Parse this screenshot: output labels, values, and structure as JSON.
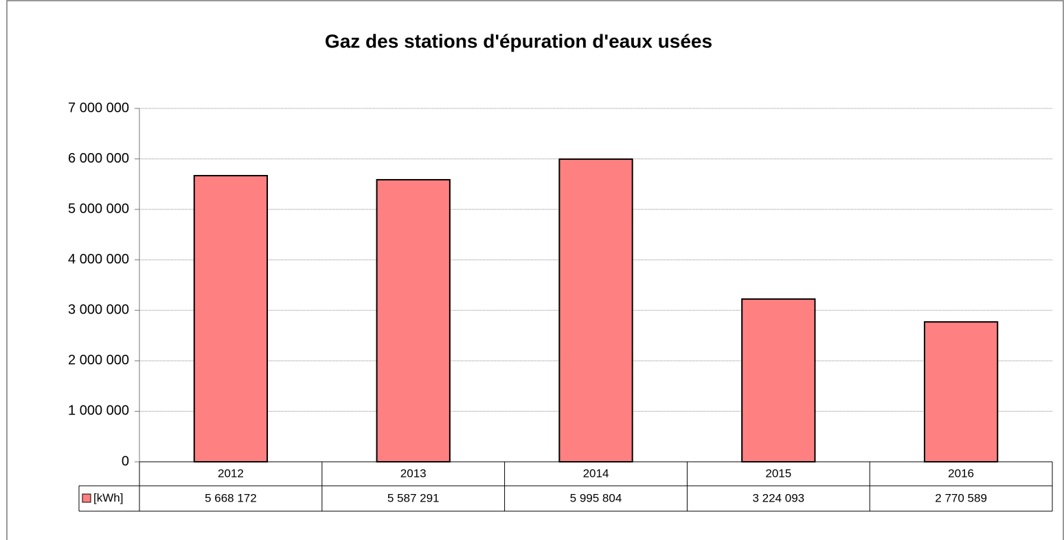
{
  "chart_data": {
    "type": "bar",
    "title": "Gaz des stations d'épuration d'eaux usées",
    "categories": [
      "2012",
      "2013",
      "2014",
      "2015",
      "2016"
    ],
    "series": [
      {
        "name": "[kWh]",
        "color": "#ff8080",
        "values": [
          5668172,
          5587291,
          5995804,
          3224093,
          2770589
        ],
        "value_labels": [
          "5 668 172",
          "5 587 291",
          "5 995 804",
          "3 224 093",
          "2 770 589"
        ]
      }
    ],
    "ylim": [
      0,
      7000000
    ],
    "yticks": [
      0,
      {
        "value": 1000000,
        "label": "1 000 000"
      },
      {
        "value": 2000000,
        "label": "2 000 000"
      },
      {
        "value": 3000000,
        "label": "3 000 000"
      },
      {
        "value": 4000000,
        "label": "4 000 000"
      },
      {
        "value": 5000000,
        "label": "5 000 000"
      },
      {
        "value": 6000000,
        "label": "6 000 000"
      },
      {
        "value": 7000000,
        "label": "7 000 000"
      }
    ],
    "grid": true
  }
}
